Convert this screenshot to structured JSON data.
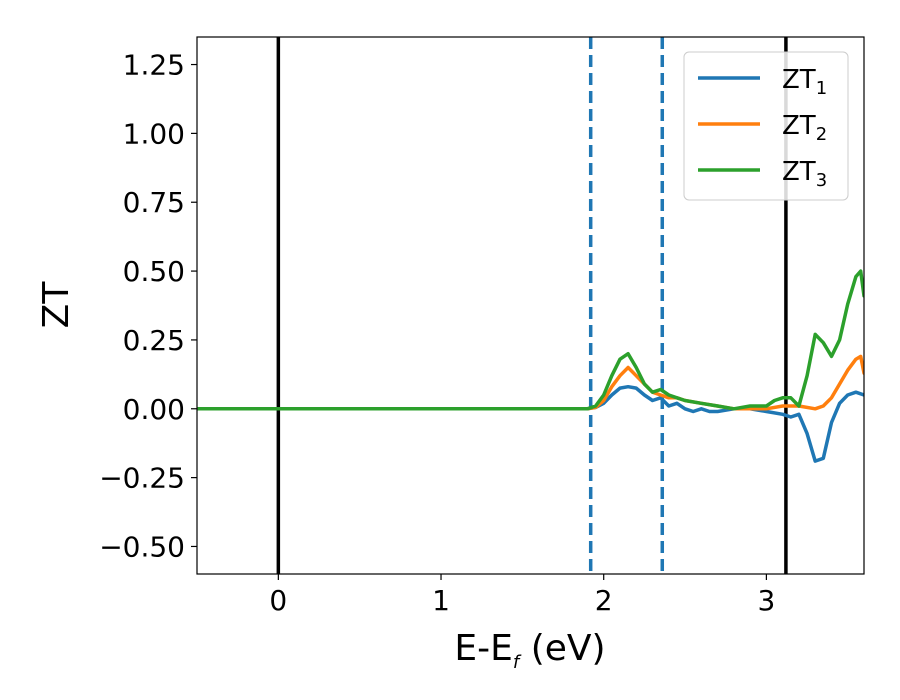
{
  "chart_data": {
    "type": "line",
    "xlabel": "E-E",
    "xlabel_sub": "f",
    "xlabel_unit": " (eV)",
    "ylabel": "ZT",
    "xlim": [
      -0.5,
      3.6
    ],
    "ylim": [
      -0.6,
      1.35
    ],
    "xticks": [
      0,
      1,
      2,
      3
    ],
    "yticks": [
      -0.5,
      -0.25,
      0.0,
      0.25,
      0.5,
      0.75,
      1.0,
      1.25
    ],
    "xtick_labels": [
      "0",
      "1",
      "2",
      "3"
    ],
    "ytick_labels": [
      "−0.50",
      "−0.25",
      "0.00",
      "0.25",
      "0.50",
      "0.75",
      "1.00",
      "1.25"
    ],
    "legend": {
      "position": "top-right"
    },
    "vlines": [
      {
        "x": 0.0,
        "style": "solid",
        "color": "#000000"
      },
      {
        "x": 1.92,
        "style": "dashed",
        "color": "#1f77b4"
      },
      {
        "x": 2.36,
        "style": "dashed",
        "color": "#1f77b4"
      },
      {
        "x": 3.12,
        "style": "solid",
        "color": "#000000"
      }
    ],
    "series": [
      {
        "name": "ZT",
        "sub": "1",
        "color": "#1f77b4",
        "x": [
          -0.5,
          1.9,
          1.95,
          2.0,
          2.05,
          2.1,
          2.15,
          2.2,
          2.25,
          2.3,
          2.35,
          2.4,
          2.45,
          2.5,
          2.55,
          2.6,
          2.65,
          2.7,
          2.8,
          2.9,
          3.0,
          3.1,
          3.15,
          3.2,
          3.25,
          3.3,
          3.35,
          3.4,
          3.45,
          3.5,
          3.55,
          3.6
        ],
        "y": [
          0.0,
          0.0,
          0.005,
          0.02,
          0.05,
          0.075,
          0.08,
          0.075,
          0.05,
          0.03,
          0.04,
          0.01,
          0.02,
          0.0,
          -0.01,
          0.0,
          -0.01,
          -0.01,
          0.0,
          0.0,
          -0.01,
          -0.02,
          -0.03,
          -0.02,
          -0.09,
          -0.19,
          -0.18,
          -0.05,
          0.02,
          0.05,
          0.06,
          0.05
        ]
      },
      {
        "name": "ZT",
        "sub": "2",
        "color": "#ff7f0e",
        "x": [
          -0.5,
          1.9,
          1.95,
          2.0,
          2.05,
          2.1,
          2.15,
          2.2,
          2.25,
          2.3,
          2.35,
          2.4,
          2.45,
          2.5,
          2.6,
          2.7,
          2.8,
          2.9,
          3.0,
          3.1,
          3.2,
          3.3,
          3.35,
          3.4,
          3.45,
          3.5,
          3.55,
          3.58,
          3.6
        ],
        "y": [
          0.0,
          0.0,
          0.005,
          0.03,
          0.08,
          0.12,
          0.15,
          0.12,
          0.09,
          0.06,
          0.05,
          0.04,
          0.04,
          0.03,
          0.02,
          0.01,
          0.0,
          0.0,
          0.0,
          0.01,
          0.01,
          0.0,
          0.01,
          0.04,
          0.09,
          0.14,
          0.18,
          0.19,
          0.13
        ]
      },
      {
        "name": "ZT",
        "sub": "3",
        "color": "#2ca02c",
        "x": [
          -0.5,
          1.9,
          1.95,
          2.0,
          2.05,
          2.1,
          2.15,
          2.2,
          2.25,
          2.3,
          2.35,
          2.4,
          2.45,
          2.5,
          2.6,
          2.7,
          2.8,
          2.9,
          3.0,
          3.05,
          3.1,
          3.15,
          3.2,
          3.25,
          3.3,
          3.35,
          3.4,
          3.45,
          3.5,
          3.55,
          3.58,
          3.6
        ],
        "y": [
          0.0,
          0.0,
          0.01,
          0.05,
          0.12,
          0.18,
          0.2,
          0.15,
          0.09,
          0.06,
          0.07,
          0.05,
          0.04,
          0.03,
          0.02,
          0.01,
          0.0,
          0.01,
          0.01,
          0.03,
          0.04,
          0.04,
          0.01,
          0.12,
          0.27,
          0.24,
          0.19,
          0.25,
          0.38,
          0.48,
          0.5,
          0.41
        ]
      }
    ]
  }
}
